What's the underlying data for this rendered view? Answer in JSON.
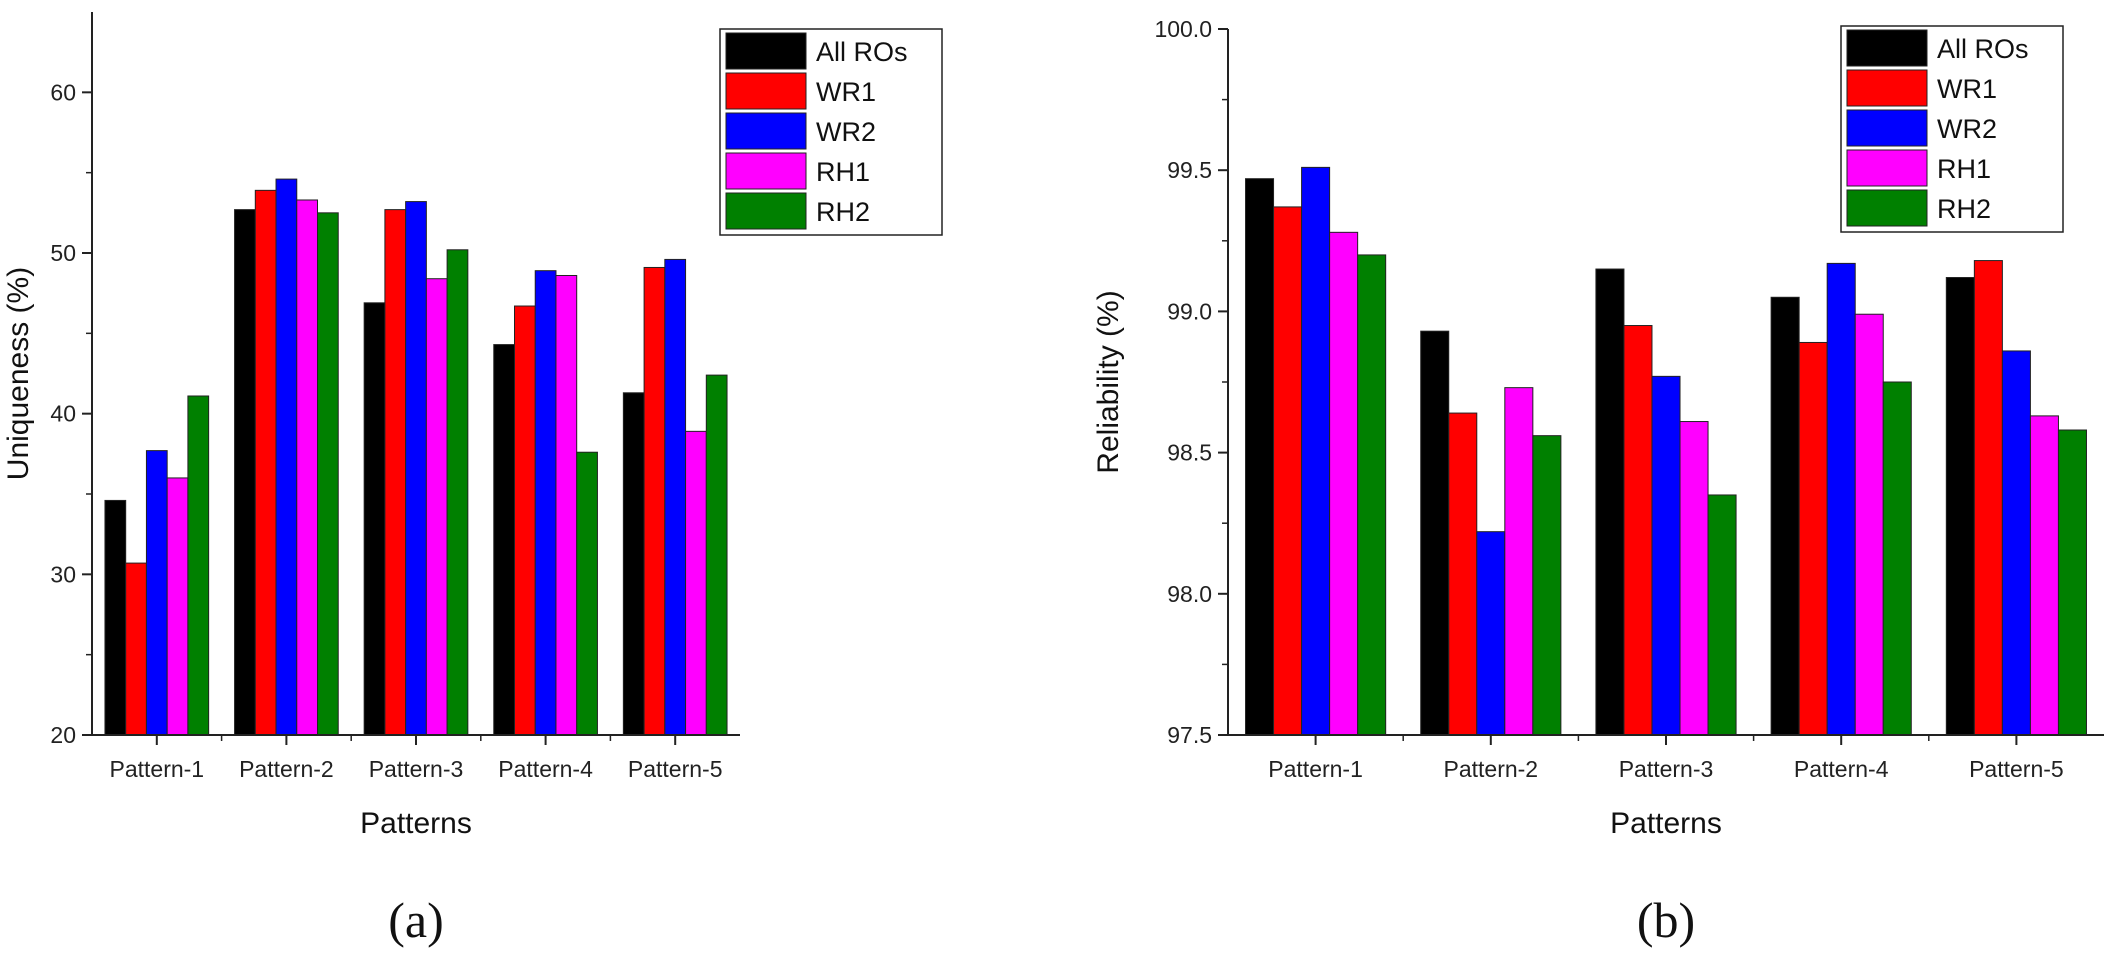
{
  "series_colors": {
    "All ROs": "#000000",
    "WR1": "#ff0000",
    "WR2": "#0000ff",
    "RH1": "#ff00ff",
    "RH2": "#008000"
  },
  "chart_data": [
    {
      "type": "bar",
      "panel_label": "(a)",
      "title": "",
      "xlabel": "Patterns",
      "ylabel": "Uniqueness (%)",
      "ylim": [
        20,
        65
      ],
      "yticks": [
        "20",
        "30",
        "40",
        "50",
        "60"
      ],
      "categories": [
        "Pattern-1",
        "Pattern-2",
        "Pattern-3",
        "Pattern-4",
        "Pattern-5"
      ],
      "legend_position": "top-right",
      "series": [
        {
          "name": "All ROs",
          "values": [
            34.6,
            52.7,
            46.9,
            44.3,
            41.3
          ]
        },
        {
          "name": "WR1",
          "values": [
            30.7,
            53.9,
            52.7,
            46.7,
            49.1
          ]
        },
        {
          "name": "WR2",
          "values": [
            37.7,
            54.6,
            53.2,
            48.9,
            49.6
          ]
        },
        {
          "name": "RH1",
          "values": [
            36.0,
            53.3,
            48.4,
            48.6,
            38.9
          ]
        },
        {
          "name": "RH2",
          "values": [
            41.1,
            52.5,
            50.2,
            37.6,
            42.4
          ]
        }
      ]
    },
    {
      "type": "bar",
      "panel_label": "(b)",
      "title": "",
      "xlabel": "Patterns",
      "ylabel": "Reliability (%)",
      "ylim": [
        97.5,
        100.0
      ],
      "yticks": [
        "97.5",
        "98.0",
        "98.5",
        "99.0",
        "99.5",
        "100.0"
      ],
      "categories": [
        "Pattern-1",
        "Pattern-2",
        "Pattern-3",
        "Pattern-4",
        "Pattern-5"
      ],
      "legend_position": "top-right",
      "series": [
        {
          "name": "All ROs",
          "values": [
            99.47,
            98.93,
            99.15,
            99.05,
            99.12
          ]
        },
        {
          "name": "WR1",
          "values": [
            99.37,
            98.64,
            98.95,
            98.89,
            99.18
          ]
        },
        {
          "name": "WR2",
          "values": [
            99.51,
            98.22,
            98.77,
            99.17,
            98.86
          ]
        },
        {
          "name": "RH1",
          "values": [
            99.28,
            98.73,
            98.61,
            98.99,
            98.63
          ]
        },
        {
          "name": "RH2",
          "values": [
            99.2,
            98.56,
            98.35,
            98.75,
            98.58
          ]
        }
      ]
    }
  ]
}
